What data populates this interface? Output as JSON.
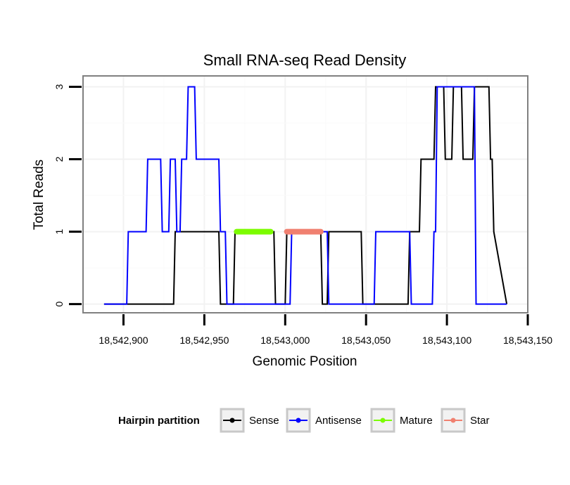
{
  "chart_data": {
    "type": "line",
    "title": "Small RNA-seq Read Density",
    "xlabel": "Genomic Position",
    "ylabel": "Total Reads",
    "xlim": [
      18542875,
      18543150
    ],
    "ylim": [
      -0.12,
      3.15
    ],
    "xticks": [
      18542900,
      18542950,
      18543000,
      18543050,
      18543100,
      18543150
    ],
    "xtick_labels": [
      "18,542,900",
      "18,542,950",
      "18,543,000",
      "18,543,050",
      "18,543,100",
      "18,543,150"
    ],
    "yticks": [
      0,
      1,
      2,
      3
    ],
    "ytick_labels": [
      "0",
      "1",
      "2",
      "3"
    ],
    "grid": true,
    "legend": {
      "title": "Hairpin partition",
      "position": "bottom",
      "entries": [
        "Sense",
        "Antisense",
        "Mature",
        "Star"
      ]
    },
    "series": [
      {
        "name": "Sense",
        "color": "#000000",
        "x": [
          18542888,
          18542931,
          18542932,
          18542959,
          18542960,
          18542968,
          18542969,
          18542993,
          18542994,
          18543000,
          18543001,
          18543022,
          18543023,
          18543026,
          18543027,
          18543047,
          18543048,
          18543076,
          18543077,
          18543083,
          18543084,
          18543092,
          18543093,
          18543098,
          18543099,
          18543103,
          18543104,
          18543109,
          18543110,
          18543116,
          18543117,
          18543126,
          18543127,
          18543128,
          18543129,
          18543137
        ],
        "y": [
          0,
          0,
          1,
          1,
          0,
          0,
          1,
          1,
          0,
          0,
          1,
          1,
          0,
          0,
          1,
          1,
          0,
          0,
          1,
          1,
          2,
          2,
          3,
          3,
          2,
          2,
          3,
          3,
          2,
          2,
          3,
          3,
          2,
          2,
          1,
          0
        ]
      },
      {
        "name": "Antisense",
        "color": "#0000ff",
        "x": [
          18542888,
          18542902,
          18542903,
          18542914,
          18542915,
          18542923,
          18542924,
          18542928,
          18542929,
          18542932,
          18542933,
          18542935,
          18542936,
          18542939,
          18542940,
          18542944,
          18542945,
          18542949,
          18542950,
          18542959,
          18542960,
          18542963,
          18542964,
          18542968,
          18542969,
          18543003,
          18543004,
          18543026,
          18543027,
          18543055,
          18543056,
          18543077,
          18543078,
          18543091,
          18543092,
          18543093,
          18543094,
          18543101,
          18543102,
          18543112,
          18543113,
          18543117,
          18543118,
          18543137
        ],
        "y": [
          0,
          0,
          1,
          1,
          2,
          2,
          1,
          1,
          2,
          2,
          1,
          1,
          2,
          2,
          3,
          3,
          2,
          2,
          2,
          2,
          1,
          1,
          0,
          0,
          0,
          0,
          1,
          1,
          0,
          0,
          1,
          1,
          0,
          0,
          1,
          1,
          3,
          3,
          3,
          3,
          3,
          3,
          0,
          0
        ]
      },
      {
        "name": "Mature",
        "color": "#7cfc00",
        "x": [
          18542970,
          18542991
        ],
        "y": [
          1,
          1
        ]
      },
      {
        "name": "Star",
        "color": "#f08070",
        "x": [
          18543001,
          18543022
        ],
        "y": [
          1,
          1
        ]
      }
    ]
  }
}
